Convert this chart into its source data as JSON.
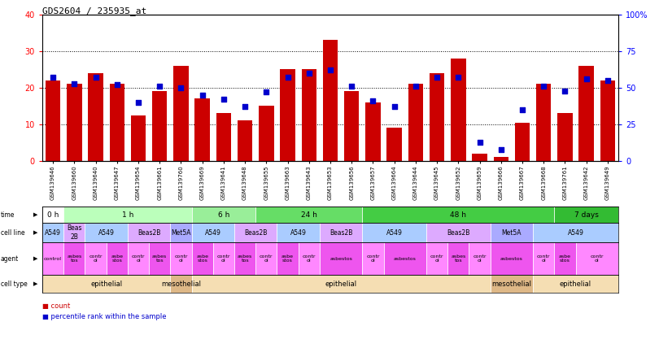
{
  "title": "GDS2604 / 235935_at",
  "samples": [
    "GSM139646",
    "GSM139660",
    "GSM139640",
    "GSM139647",
    "GSM139654",
    "GSM139661",
    "GSM139760",
    "GSM139669",
    "GSM139641",
    "GSM139648",
    "GSM139655",
    "GSM139663",
    "GSM139643",
    "GSM139653",
    "GSM139656",
    "GSM139657",
    "GSM139664",
    "GSM139644",
    "GSM139645",
    "GSM139652",
    "GSM139659",
    "GSM139666",
    "GSM139667",
    "GSM139668",
    "GSM139761",
    "GSM139642",
    "GSM139649"
  ],
  "counts": [
    22,
    21,
    24,
    21,
    12.5,
    19,
    26,
    17,
    13,
    11,
    15,
    25,
    25,
    33,
    19,
    16,
    9,
    21,
    24,
    28,
    2,
    1,
    10.5,
    21,
    13,
    26,
    22
  ],
  "percentile_ranks": [
    57,
    53,
    57,
    52,
    40,
    51,
    50,
    45,
    42,
    37,
    47,
    57,
    60,
    62,
    51,
    41,
    37,
    51,
    57,
    57,
    13,
    8,
    35,
    51,
    48,
    56,
    55
  ],
  "time_groups": [
    {
      "label": "0 h",
      "start": 0,
      "end": 1,
      "color": "#ffffff"
    },
    {
      "label": "1 h",
      "start": 1,
      "end": 7,
      "color": "#bbffbb"
    },
    {
      "label": "6 h",
      "start": 7,
      "end": 10,
      "color": "#99ee99"
    },
    {
      "label": "24 h",
      "start": 10,
      "end": 15,
      "color": "#66dd66"
    },
    {
      "label": "48 h",
      "start": 15,
      "end": 24,
      "color": "#44cc44"
    },
    {
      "label": "7 days",
      "start": 24,
      "end": 27,
      "color": "#33bb33"
    }
  ],
  "cell_line_groups": [
    {
      "label": "A549",
      "start": 0,
      "end": 1,
      "color": "#aaccff"
    },
    {
      "label": "Beas\n2B",
      "start": 1,
      "end": 2,
      "color": "#ddaaff"
    },
    {
      "label": "A549",
      "start": 2,
      "end": 4,
      "color": "#aaccff"
    },
    {
      "label": "Beas2B",
      "start": 4,
      "end": 6,
      "color": "#ddaaff"
    },
    {
      "label": "Met5A",
      "start": 6,
      "end": 7,
      "color": "#aaaaff"
    },
    {
      "label": "A549",
      "start": 7,
      "end": 9,
      "color": "#aaccff"
    },
    {
      "label": "Beas2B",
      "start": 9,
      "end": 11,
      "color": "#ddaaff"
    },
    {
      "label": "A549",
      "start": 11,
      "end": 13,
      "color": "#aaccff"
    },
    {
      "label": "Beas2B",
      "start": 13,
      "end": 15,
      "color": "#ddaaff"
    },
    {
      "label": "A549",
      "start": 15,
      "end": 18,
      "color": "#aaccff"
    },
    {
      "label": "Beas2B",
      "start": 18,
      "end": 21,
      "color": "#ddaaff"
    },
    {
      "label": "Met5A",
      "start": 21,
      "end": 23,
      "color": "#aaaaff"
    },
    {
      "label": "A549",
      "start": 23,
      "end": 27,
      "color": "#aaccff"
    }
  ],
  "agent_groups": [
    {
      "label": "control",
      "start": 0,
      "end": 1,
      "color": "#ff88ff"
    },
    {
      "label": "asbes\ntos",
      "start": 1,
      "end": 2,
      "color": "#ee55ee"
    },
    {
      "label": "contr\nol",
      "start": 2,
      "end": 3,
      "color": "#ff88ff"
    },
    {
      "label": "asbe\nstos",
      "start": 3,
      "end": 4,
      "color": "#ee55ee"
    },
    {
      "label": "contr\nol",
      "start": 4,
      "end": 5,
      "color": "#ff88ff"
    },
    {
      "label": "asbes\ntos",
      "start": 5,
      "end": 6,
      "color": "#ee55ee"
    },
    {
      "label": "contr\nol",
      "start": 6,
      "end": 7,
      "color": "#ff88ff"
    },
    {
      "label": "asbe\nstos",
      "start": 7,
      "end": 8,
      "color": "#ee55ee"
    },
    {
      "label": "contr\nol",
      "start": 8,
      "end": 9,
      "color": "#ff88ff"
    },
    {
      "label": "asbes\ntos",
      "start": 9,
      "end": 10,
      "color": "#ee55ee"
    },
    {
      "label": "contr\nol",
      "start": 10,
      "end": 11,
      "color": "#ff88ff"
    },
    {
      "label": "asbe\nstos",
      "start": 11,
      "end": 12,
      "color": "#ee55ee"
    },
    {
      "label": "contr\nol",
      "start": 12,
      "end": 13,
      "color": "#ff88ff"
    },
    {
      "label": "asbestos",
      "start": 13,
      "end": 15,
      "color": "#ee55ee"
    },
    {
      "label": "contr\nol",
      "start": 15,
      "end": 16,
      "color": "#ff88ff"
    },
    {
      "label": "asbestos",
      "start": 16,
      "end": 18,
      "color": "#ee55ee"
    },
    {
      "label": "contr\nol",
      "start": 18,
      "end": 19,
      "color": "#ff88ff"
    },
    {
      "label": "asbes\ntos",
      "start": 19,
      "end": 20,
      "color": "#ee55ee"
    },
    {
      "label": "contr\nol",
      "start": 20,
      "end": 21,
      "color": "#ff88ff"
    },
    {
      "label": "asbestos",
      "start": 21,
      "end": 23,
      "color": "#ee55ee"
    },
    {
      "label": "contr\nol",
      "start": 23,
      "end": 24,
      "color": "#ff88ff"
    },
    {
      "label": "asbe\nstos",
      "start": 24,
      "end": 25,
      "color": "#ee55ee"
    },
    {
      "label": "contr\nol",
      "start": 25,
      "end": 27,
      "color": "#ff88ff"
    }
  ],
  "cell_type_groups": [
    {
      "label": "epithelial",
      "start": 0,
      "end": 6,
      "color": "#f5deb3"
    },
    {
      "label": "mesothelial",
      "start": 6,
      "end": 7,
      "color": "#deb887"
    },
    {
      "label": "epithelial",
      "start": 7,
      "end": 21,
      "color": "#f5deb3"
    },
    {
      "label": "mesothelial",
      "start": 21,
      "end": 23,
      "color": "#deb887"
    },
    {
      "label": "epithelial",
      "start": 23,
      "end": 27,
      "color": "#f5deb3"
    }
  ],
  "row_labels": [
    "time",
    "cell line",
    "agent",
    "cell type"
  ],
  "ylim_left": [
    0,
    40
  ],
  "ylim_right": [
    0,
    100
  ],
  "yticks_left": [
    0,
    10,
    20,
    30,
    40
  ],
  "ytick_labels_left": [
    "0",
    "10",
    "20",
    "30",
    "40"
  ],
  "yticks_right": [
    0,
    25,
    50,
    75,
    100
  ],
  "ytick_labels_right": [
    "0",
    "25",
    "50",
    "75",
    "100%"
  ],
  "bar_color": "#cc0000",
  "dot_color": "#0000cc",
  "legend_count_color": "#cc0000",
  "legend_pct_color": "#0000cc"
}
